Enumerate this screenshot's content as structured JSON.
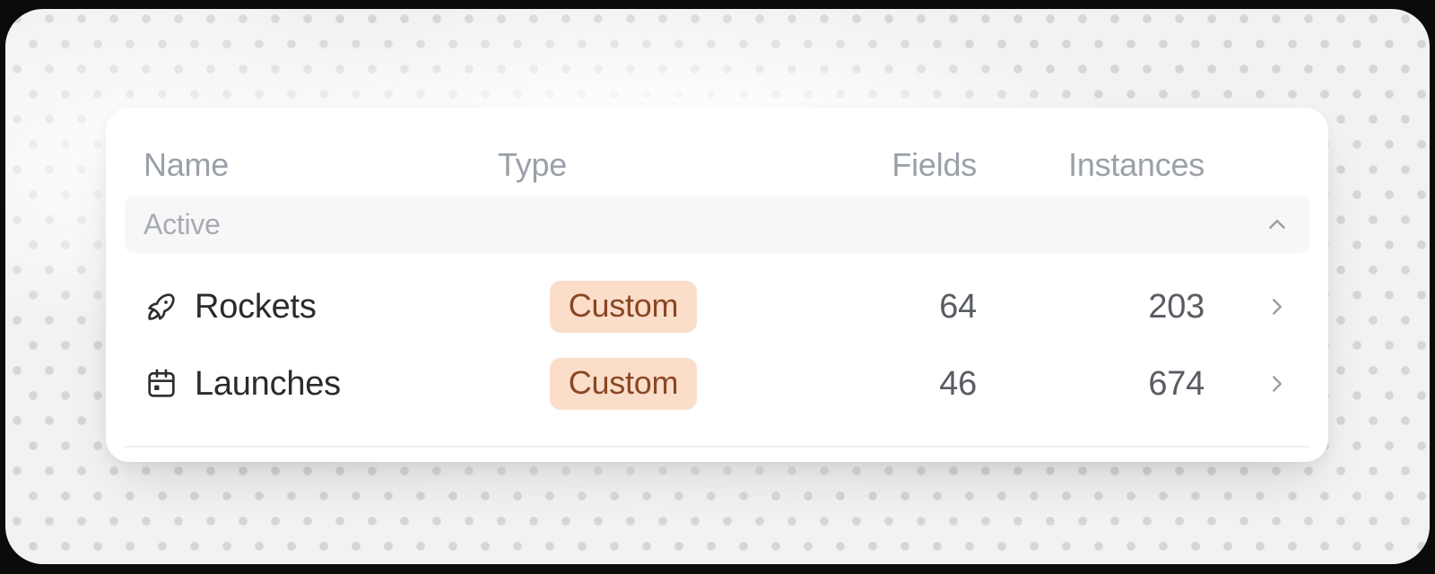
{
  "table": {
    "columns": [
      {
        "id": "name",
        "label": "Name"
      },
      {
        "id": "type",
        "label": "Type"
      },
      {
        "id": "fields",
        "label": "Fields"
      },
      {
        "id": "instances",
        "label": "Instances"
      }
    ],
    "section": {
      "label": "Active",
      "state": "expanded",
      "toggle_icon": "chevron-up"
    },
    "rows": [
      {
        "icon": "rocket",
        "name": "Rockets",
        "type": "Custom",
        "fields": "64",
        "instances": "203"
      },
      {
        "icon": "calendar",
        "name": "Launches",
        "type": "Custom",
        "fields": "46",
        "instances": "674"
      }
    ]
  },
  "colors": {
    "frame": "#0b0b0c",
    "stage_bg": "#f2f2f3",
    "dot": "#d6d6d9",
    "card_bg": "#ffffff",
    "section_bg": "#f7f7f8",
    "header_text": "#9aa0a8",
    "section_text": "#a7abb2",
    "row_text": "#2b2b2f",
    "number_text": "#595c62",
    "badge_bg": "#fbdeca",
    "badge_text": "#8a4724"
  }
}
